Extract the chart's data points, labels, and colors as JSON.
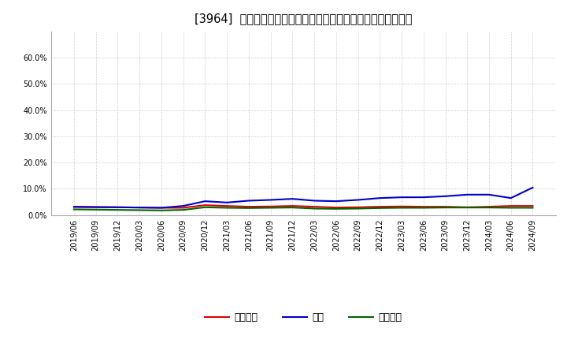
{
  "title": "[3964]  売上債権、在庫、買入債務の総資産に対する比率の推移",
  "legend_labels": [
    "売上債権",
    "在庫",
    "買入債務"
  ],
  "line_colors": [
    "#dd0000",
    "#0000cc",
    "#006600"
  ],
  "dates": [
    "2019/06",
    "2019/09",
    "2019/12",
    "2020/03",
    "2020/06",
    "2020/09",
    "2020/12",
    "2021/03",
    "2021/06",
    "2021/09",
    "2021/12",
    "2022/03",
    "2022/06",
    "2022/09",
    "2022/12",
    "2023/03",
    "2023/06",
    "2023/09",
    "2023/12",
    "2024/03",
    "2024/06",
    "2024/09"
  ],
  "urikake": [
    3.1,
    3.0,
    3.0,
    2.9,
    2.8,
    2.8,
    3.8,
    3.5,
    3.2,
    3.3,
    3.5,
    3.2,
    2.9,
    3.0,
    3.2,
    3.3,
    3.2,
    3.2,
    3.0,
    3.2,
    3.5,
    3.5
  ],
  "zaiko": [
    3.2,
    3.1,
    3.0,
    2.9,
    2.8,
    3.5,
    5.3,
    4.8,
    5.5,
    5.8,
    6.2,
    5.5,
    5.3,
    5.8,
    6.5,
    6.8,
    6.8,
    7.2,
    7.8,
    7.8,
    6.5,
    10.5
  ],
  "kaiire": [
    2.2,
    2.1,
    2.0,
    1.9,
    1.8,
    2.0,
    3.0,
    2.8,
    2.7,
    2.8,
    2.9,
    2.5,
    2.4,
    2.5,
    2.7,
    2.8,
    2.8,
    2.9,
    2.9,
    2.9,
    2.8,
    2.8
  ],
  "ylim": [
    0,
    70
  ],
  "yticks": [
    0,
    10,
    20,
    30,
    40,
    50,
    60
  ],
  "ytick_labels": [
    "0.0%",
    "10.0%",
    "20.0%",
    "30.0%",
    "40.0%",
    "50.0%",
    "60.0%"
  ],
  "bg_color": "#ffffff",
  "plot_bg_color": "#ffffff",
  "grid_color": "#999999",
  "title_fontsize": 10.5,
  "line_width": 1.5
}
